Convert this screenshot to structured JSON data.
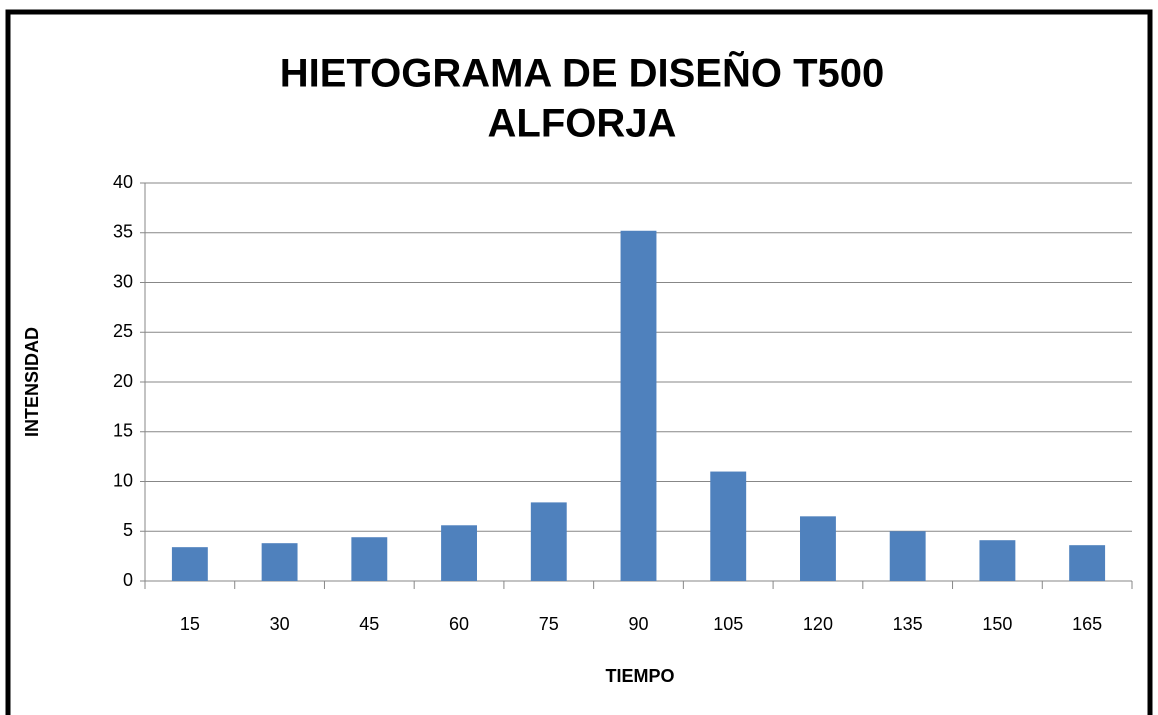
{
  "chart_data": {
    "type": "bar",
    "title": "HIETOGRAMA DE DISEÑO T500",
    "subtitle": "ALFORJA",
    "x_label": "TIEMPO",
    "y_label": "INTENSIDAD",
    "categories": [
      15,
      30,
      45,
      60,
      75,
      90,
      105,
      120,
      135,
      150,
      165
    ],
    "values": [
      3.4,
      3.8,
      4.4,
      5.6,
      7.9,
      35.2,
      11.0,
      6.5,
      5.0,
      4.1,
      3.6
    ],
    "color": "#4f81bd",
    "ylim": [
      0,
      40
    ],
    "yticks": [
      0,
      5,
      10,
      15,
      20,
      25,
      30,
      35,
      40
    ],
    "grid": true
  }
}
